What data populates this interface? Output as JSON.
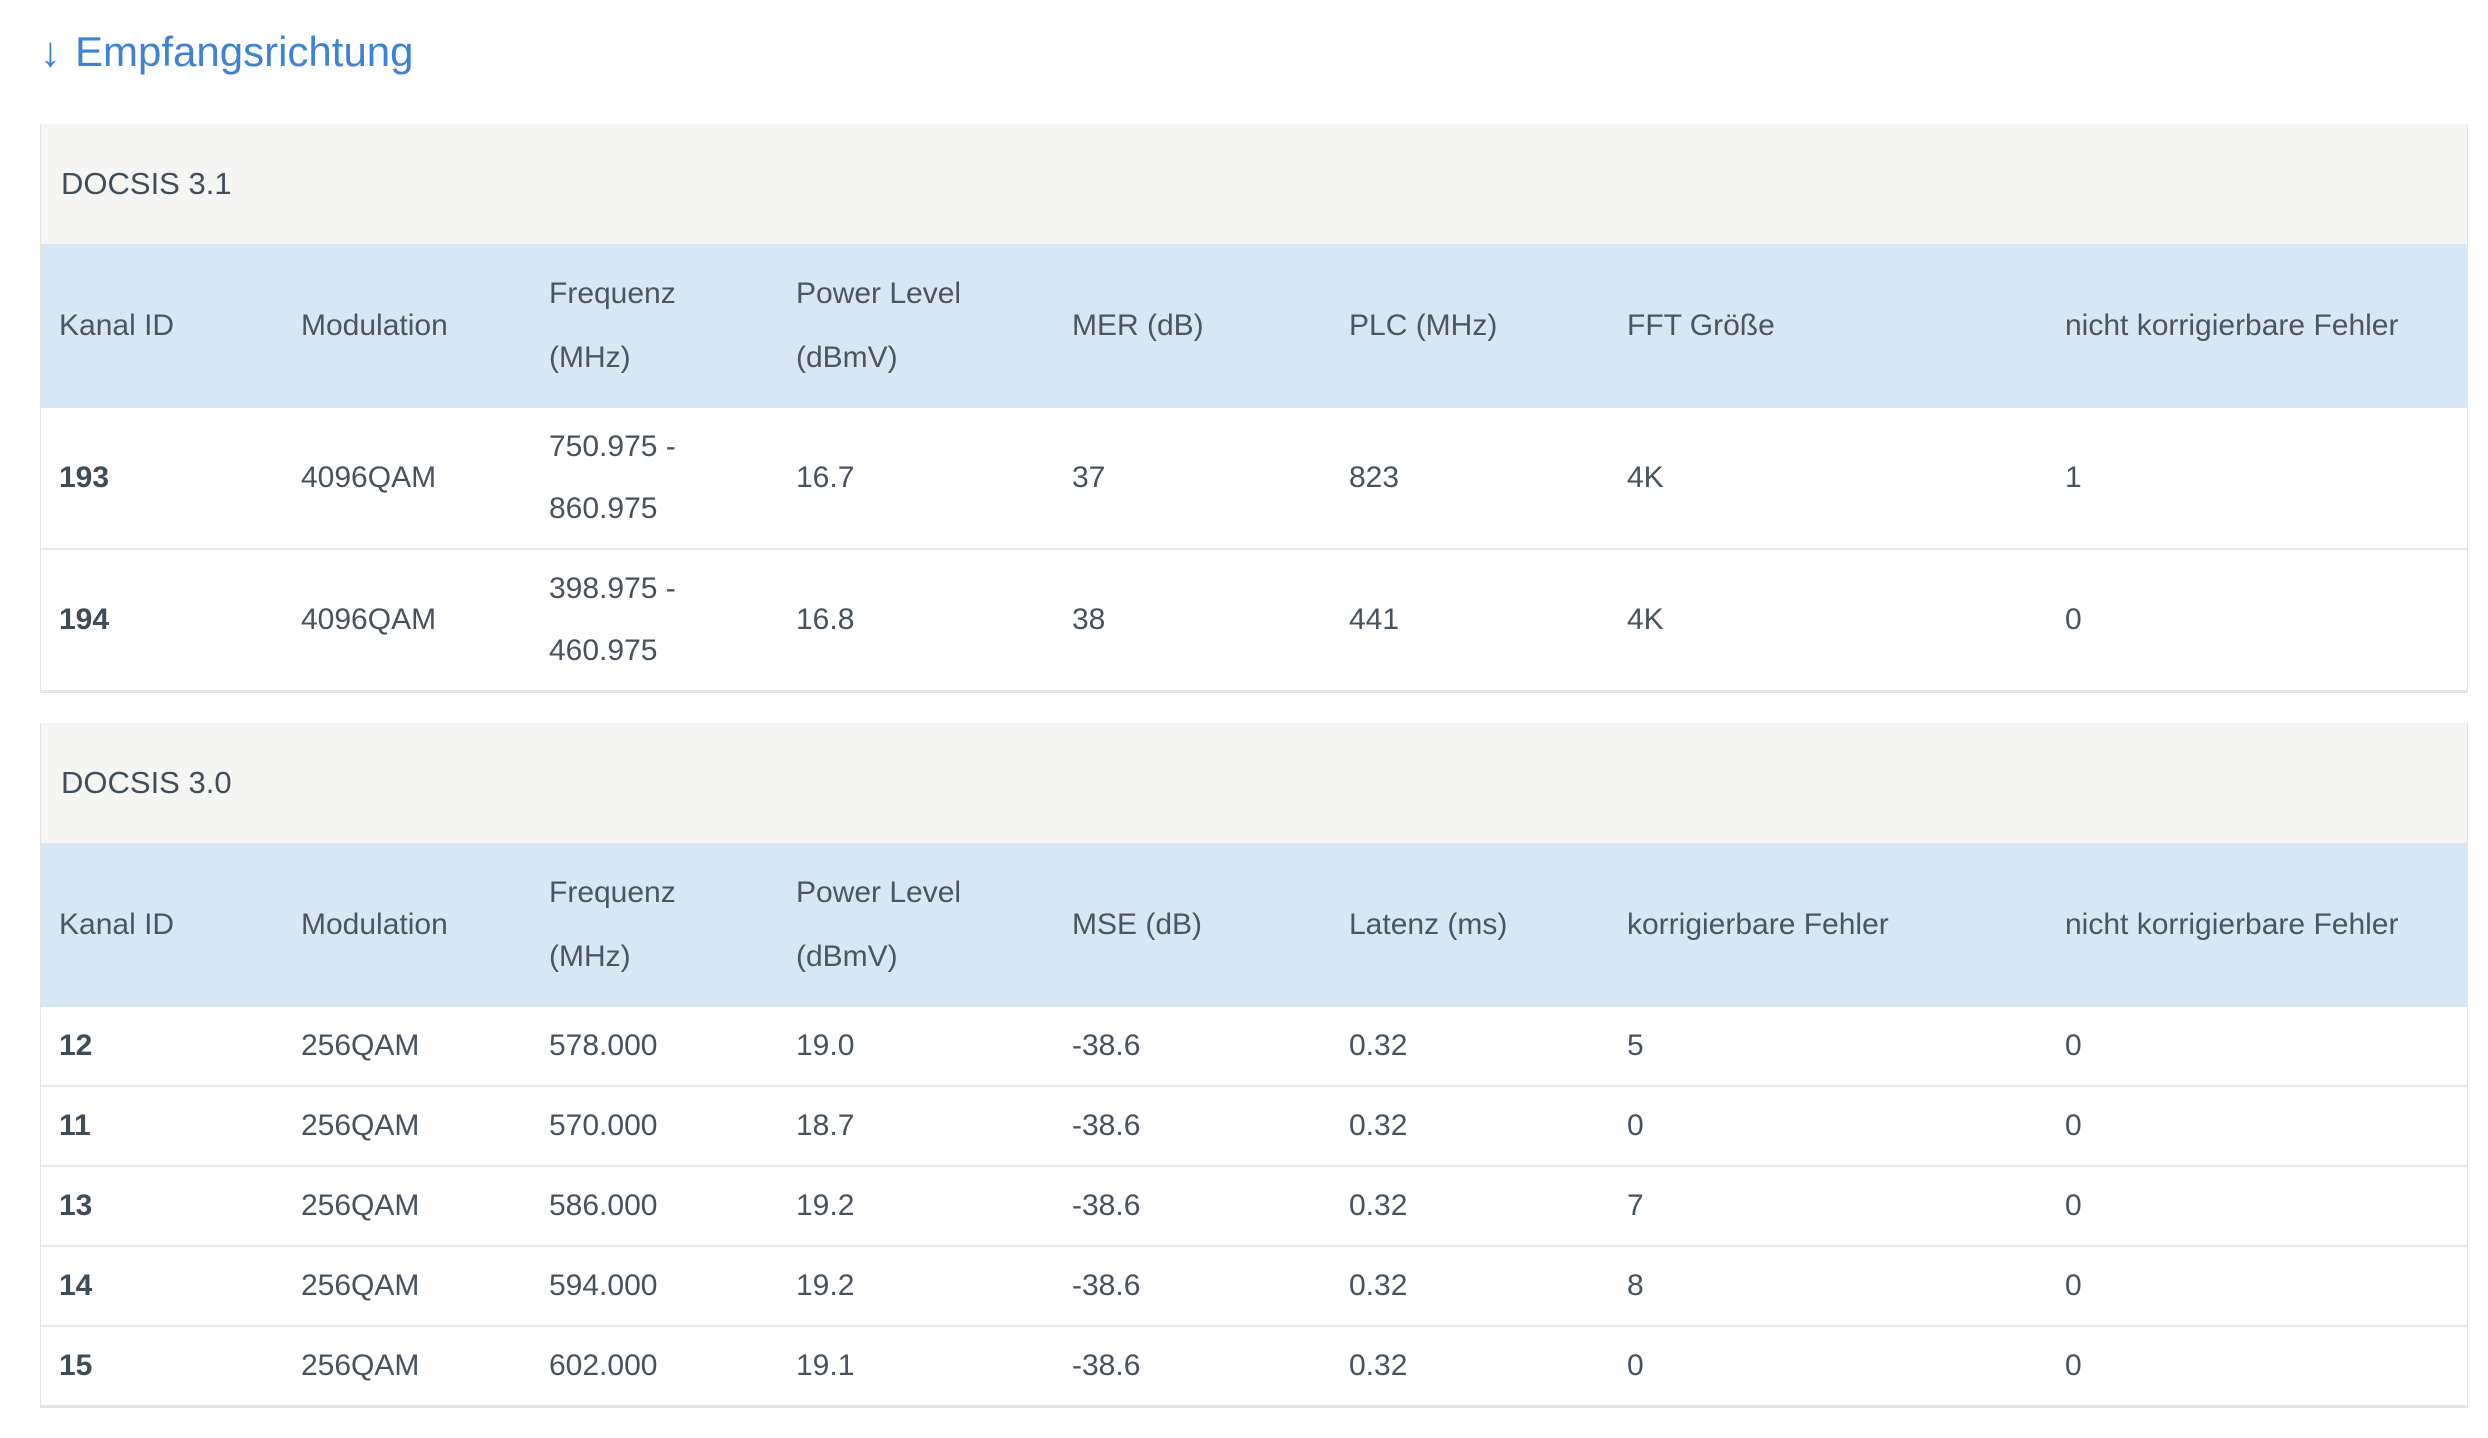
{
  "page": {
    "title": "Empfangsrichtung",
    "title_arrow": "↓"
  },
  "colors": {
    "accent_blue": "#3f82d5",
    "table_header_bg": "#d7e7f6",
    "section_header_bg": "#f5f5f3",
    "text_dark": "#47525e",
    "row_border": "#e7e7e7"
  },
  "tables": [
    {
      "section_label": "DOCSIS 3.1",
      "columns": [
        "Kanal ID",
        "Modulation",
        "Frequenz (MHz)",
        "Power Level\n(dBmV)",
        "MER (dB)",
        "PLC (MHz)",
        "FFT Größe",
        "nicht korrigierbare Fehler"
      ],
      "rows": [
        [
          "193",
          "4096QAM",
          "750.975 -\n860.975",
          "16.7",
          "37",
          "823",
          "4K",
          "1"
        ],
        [
          "194",
          "4096QAM",
          "398.975 -\n460.975",
          "16.8",
          "38",
          "441",
          "4K",
          "0"
        ]
      ]
    },
    {
      "section_label": "DOCSIS 3.0",
      "columns": [
        "Kanal ID",
        "Modulation",
        "Frequenz (MHz)",
        "Power Level\n(dBmV)",
        "MSE (dB)",
        "Latenz (ms)",
        "korrigierbare Fehler",
        "nicht korrigierbare Fehler"
      ],
      "rows": [
        [
          "12",
          "256QAM",
          "578.000",
          "19.0",
          "-38.6",
          "0.32",
          "5",
          "0"
        ],
        [
          "11",
          "256QAM",
          "570.000",
          "18.7",
          "-38.6",
          "0.32",
          "0",
          "0"
        ],
        [
          "13",
          "256QAM",
          "586.000",
          "19.2",
          "-38.6",
          "0.32",
          "7",
          "0"
        ],
        [
          "14",
          "256QAM",
          "594.000",
          "19.2",
          "-38.6",
          "0.32",
          "8",
          "0"
        ],
        [
          "15",
          "256QAM",
          "602.000",
          "19.1",
          "-38.6",
          "0.32",
          "0",
          "0"
        ]
      ]
    }
  ]
}
